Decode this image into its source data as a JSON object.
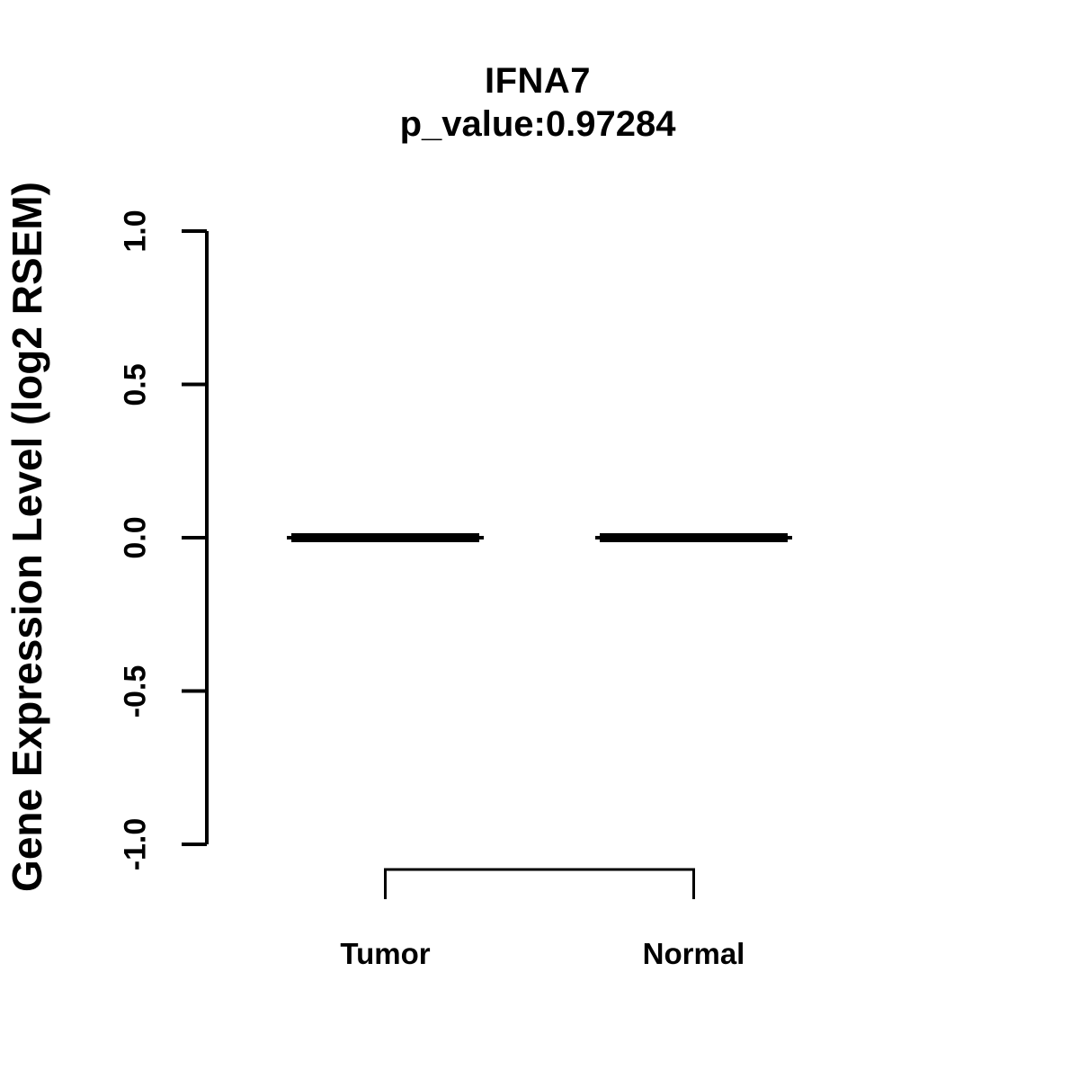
{
  "chart_data": {
    "type": "boxplot",
    "title": "IFNA7",
    "subtitle": "p_value:0.97284",
    "gene": "IFNA7",
    "p_value": 0.97284,
    "ylabel": "Gene Expression Level (log2 RSEM)",
    "xlabel": "",
    "ylim": [
      -1.0,
      1.0
    ],
    "yticks": [
      1.0,
      0.5,
      0.0,
      -0.5,
      -1.0
    ],
    "ytick_labels": [
      "1.0",
      "0.5",
      "0.0",
      "-0.5",
      "-1.0"
    ],
    "categories": [
      "Tumor",
      "Normal"
    ],
    "series": [
      {
        "name": "Tumor",
        "median": 0.0,
        "min": 0.0,
        "max": 0.0
      },
      {
        "name": "Normal",
        "median": 0.0,
        "min": 0.0,
        "max": 0.0
      }
    ],
    "comparison_bracket": {
      "groups": [
        "Tumor",
        "Normal"
      ]
    },
    "grid": false,
    "legend_position": "none",
    "colors": {
      "ink": "#000000",
      "background": "#ffffff"
    }
  }
}
